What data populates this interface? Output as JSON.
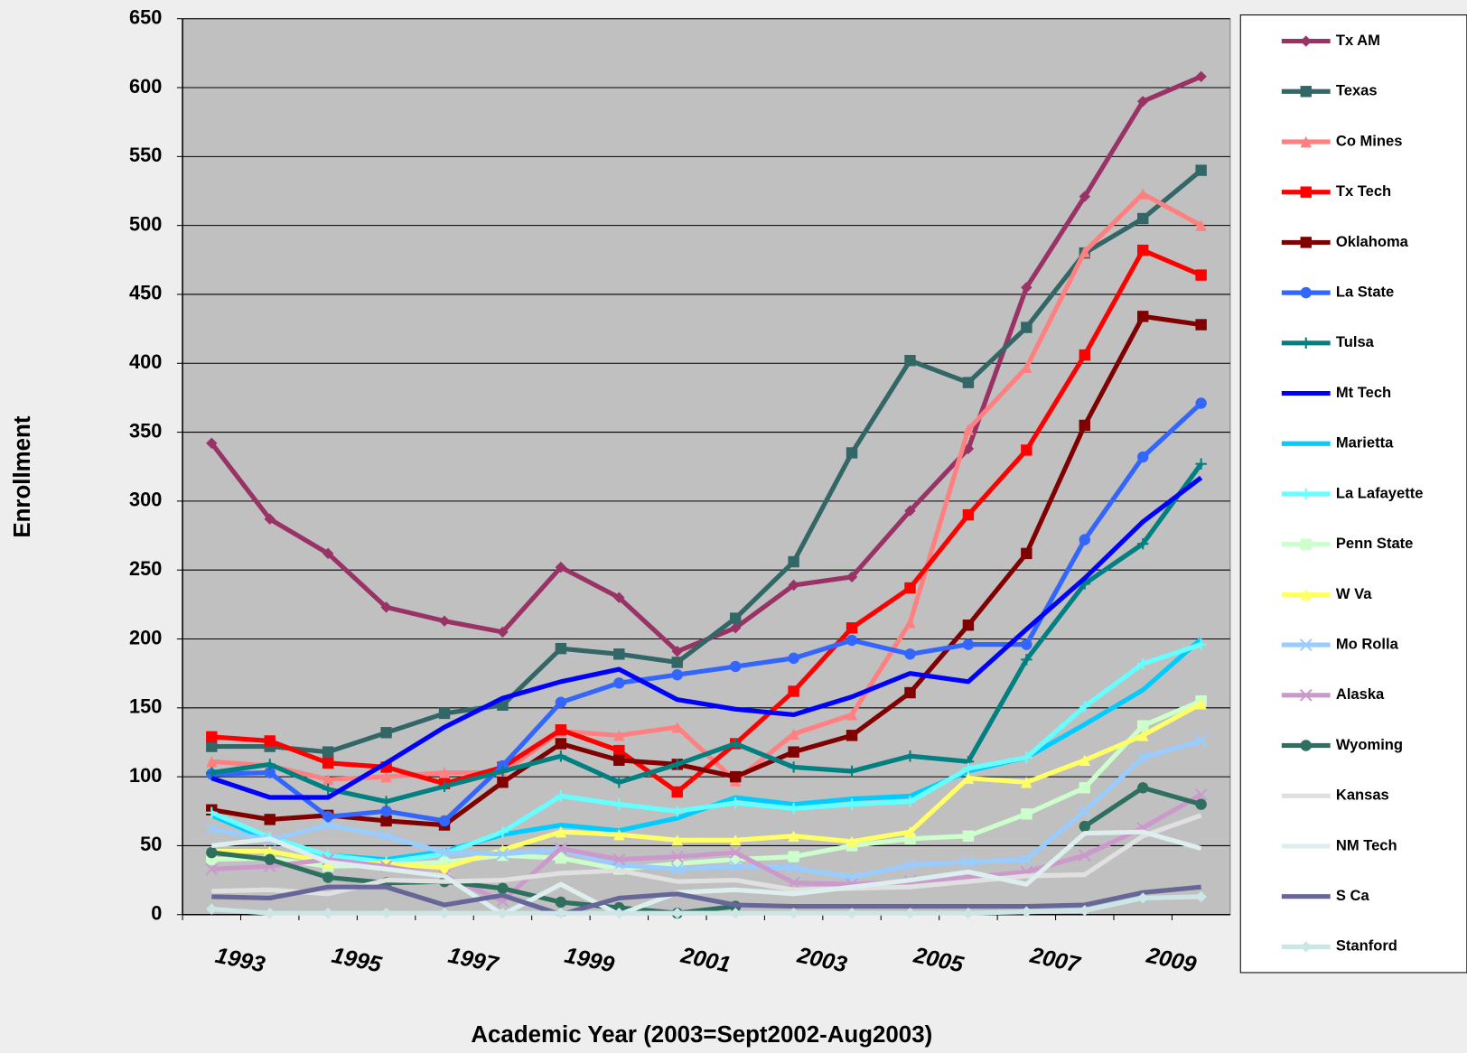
{
  "chart_data": {
    "type": "line",
    "x_label": "Academic Year (2003=Sept2002-Aug2003)",
    "y_label": "Enrollment",
    "categories": [
      null,
      "1993",
      null,
      "1995",
      null,
      "1997",
      null,
      "1999",
      null,
      "2001",
      null,
      "2003",
      null,
      "2005",
      null,
      "2007",
      null,
      "2009"
    ],
    "ylim": [
      0,
      650
    ],
    "yticks": [
      0,
      50,
      100,
      150,
      200,
      250,
      300,
      350,
      400,
      450,
      500,
      550,
      600,
      650
    ],
    "grid": true,
    "legend": "right",
    "background": "#c0c0c0",
    "series": [
      {
        "name": "Tx AM",
        "color": "#993366",
        "marker": "diamond",
        "values": [
          342,
          287,
          262,
          223,
          213,
          205,
          252,
          230,
          191,
          208,
          239,
          245,
          293,
          338,
          455,
          521,
          590,
          608
        ]
      },
      {
        "name": "Texas",
        "color": "#336666",
        "marker": "square",
        "values": [
          122,
          122,
          118,
          132,
          146,
          152,
          193,
          189,
          183,
          215,
          256,
          335,
          402,
          386,
          426,
          480,
          505,
          540
        ]
      },
      {
        "name": "Co Mines",
        "color": "#ff8080",
        "marker": "triangle",
        "values": [
          111,
          108,
          98,
          100,
          103,
          103,
          133,
          130,
          136,
          97,
          131,
          145,
          212,
          352,
          397,
          481,
          523,
          500
        ]
      },
      {
        "name": "Tx Tech",
        "color": "#ff0000",
        "marker": "square",
        "values": [
          129,
          126,
          110,
          107,
          95,
          107,
          134,
          119,
          89,
          124,
          162,
          208,
          237,
          290,
          337,
          406,
          482,
          464
        ]
      },
      {
        "name": "Oklahoma",
        "color": "#800000",
        "marker": "square",
        "values": [
          76,
          69,
          72,
          68,
          65,
          96,
          124,
          112,
          109,
          100,
          118,
          130,
          161,
          210,
          262,
          355,
          434,
          428
        ]
      },
      {
        "name": "La State",
        "color": "#3366ff",
        "marker": "circle",
        "values": [
          102,
          103,
          71,
          75,
          68,
          108,
          154,
          168,
          174,
          180,
          186,
          199,
          189,
          196,
          196,
          272,
          332,
          371
        ]
      },
      {
        "name": "Tulsa",
        "color": "#008080",
        "marker": "plus",
        "values": [
          103,
          109,
          91,
          82,
          93,
          104,
          115,
          96,
          109,
          124,
          107,
          104,
          115,
          111,
          185,
          240,
          269,
          327
        ]
      },
      {
        "name": "Mt Tech",
        "color": "#0000ff",
        "marker": "none",
        "values": [
          99,
          85,
          85,
          110,
          136,
          157,
          169,
          178,
          156,
          149,
          145,
          158,
          175,
          169,
          207,
          244,
          285,
          317
        ]
      },
      {
        "name": "Marietta",
        "color": "#00ccff",
        "marker": "none",
        "values": [
          72,
          54,
          43,
          40,
          46,
          58,
          65,
          61,
          70,
          85,
          80,
          84,
          86,
          104,
          114,
          138,
          163,
          200
        ]
      },
      {
        "name": "La Lafayette",
        "color": "#66ffff",
        "marker": "plus",
        "values": [
          74,
          56,
          43,
          38,
          44,
          60,
          86,
          80,
          75,
          81,
          77,
          80,
          82,
          106,
          114,
          151,
          182,
          196
        ]
      },
      {
        "name": "Penn State",
        "color": "#ccffcc",
        "marker": "square",
        "values": [
          40,
          41,
          35,
          36,
          38,
          43,
          41,
          33,
          37,
          40,
          42,
          50,
          55,
          57,
          73,
          92,
          137,
          155
        ]
      },
      {
        "name": "W Va",
        "color": "#ffff66",
        "marker": "triangle",
        "values": [
          46,
          46,
          38,
          37,
          34,
          47,
          60,
          58,
          54,
          54,
          57,
          53,
          60,
          99,
          96,
          112,
          130,
          153
        ]
      },
      {
        "name": "Mo Rolla",
        "color": "#99ccff",
        "marker": "x",
        "values": [
          62,
          54,
          65,
          57,
          45,
          44,
          47,
          36,
          33,
          35,
          34,
          27,
          36,
          38,
          40,
          75,
          114,
          126
        ]
      },
      {
        "name": "Alaska",
        "color": "#cc99cc",
        "marker": "x",
        "values": [
          33,
          35,
          40,
          35,
          28,
          10,
          48,
          40,
          42,
          45,
          23,
          22,
          24,
          27,
          31,
          43,
          63,
          87
        ]
      },
      {
        "name": "Wyoming",
        "color": "#2f6f5f",
        "marker": "circle",
        "values": [
          45,
          40,
          27,
          23,
          24,
          19,
          9,
          5,
          1,
          6,
          null,
          null,
          null,
          null,
          null,
          64,
          92,
          80
        ]
      },
      {
        "name": "Kansas",
        "color": "#e0e0e0",
        "marker": "none",
        "values": [
          17,
          18,
          15,
          25,
          24,
          25,
          30,
          32,
          24,
          25,
          18,
          19,
          20,
          24,
          28,
          29,
          57,
          72
        ]
      },
      {
        "name": "NM Tech",
        "color": "#ddeeee",
        "marker": "none",
        "values": [
          50,
          55,
          38,
          33,
          28,
          0,
          22,
          0,
          16,
          18,
          15,
          20,
          25,
          31,
          22,
          59,
          60,
          48
        ]
      },
      {
        "name": "S Ca",
        "color": "#666699",
        "marker": "none",
        "values": [
          13,
          12,
          20,
          20,
          7,
          14,
          0,
          12,
          15,
          7,
          6,
          6,
          6,
          6,
          6,
          7,
          16,
          20
        ]
      },
      {
        "name": "Stanford",
        "color": "#cce6e6",
        "marker": "diamond",
        "values": [
          4,
          1,
          1,
          1,
          1,
          1,
          1,
          1,
          1,
          1,
          1,
          1,
          1,
          1,
          2,
          3,
          12,
          13
        ]
      }
    ]
  }
}
